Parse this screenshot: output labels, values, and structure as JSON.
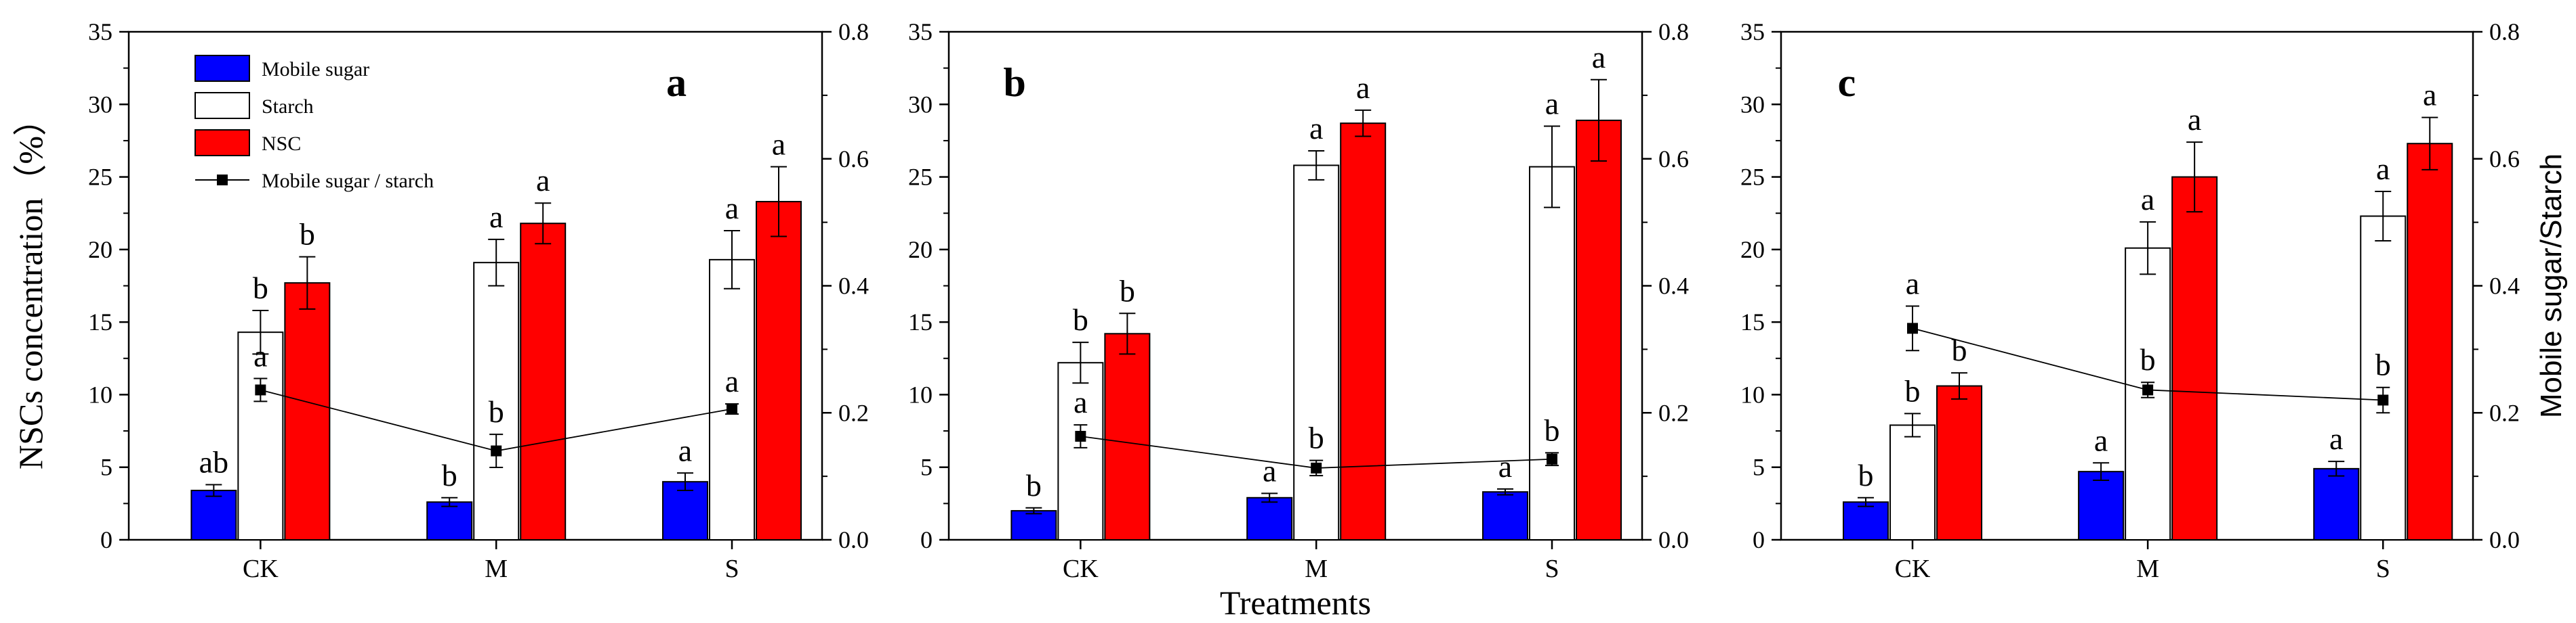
{
  "chart_data": [
    {
      "panel_label": "a",
      "type": "bar",
      "categories": [
        "CK",
        "M",
        "S"
      ],
      "left_axis": {
        "label": "NSCs concentration（%）",
        "range": [
          0,
          35
        ],
        "ticks": [
          "0",
          "5",
          "10",
          "15",
          "20",
          "25",
          "30",
          "35"
        ]
      },
      "right_axis": {
        "label": "",
        "range": [
          0,
          0.8
        ],
        "ticks": [
          "0.0",
          "0.2",
          "0.4",
          "0.6",
          "0.8"
        ]
      },
      "xlabel": "",
      "legend": [
        "Mobile sugar",
        "Starch",
        "NSC",
        "Mobile sugar / starch"
      ],
      "series": [
        {
          "name": "Mobile sugar",
          "color": "#0000ff",
          "values": [
            3.4,
            2.6,
            4.0
          ],
          "errors": [
            0.4,
            0.3,
            0.6
          ],
          "letters": [
            "ab",
            "b",
            "a"
          ]
        },
        {
          "name": "Starch",
          "color": "#ffffff",
          "values": [
            14.3,
            19.1,
            19.3
          ],
          "errors": [
            1.5,
            1.6,
            2.0
          ],
          "letters": [
            "b",
            "a",
            "a"
          ]
        },
        {
          "name": "NSC",
          "color": "#ff0000",
          "values": [
            17.7,
            21.8,
            23.3
          ],
          "errors": [
            1.8,
            1.4,
            2.4
          ],
          "letters": [
            "b",
            "a",
            "a"
          ]
        }
      ],
      "ratio": {
        "name": "Mobile sugar / starch",
        "values": [
          0.236,
          0.14,
          0.206
        ],
        "errors": [
          0.018,
          0.026,
          0.008
        ],
        "letters": [
          "a",
          "b",
          "a"
        ]
      }
    },
    {
      "panel_label": "b",
      "type": "bar",
      "categories": [
        "CK",
        "M",
        "S"
      ],
      "left_axis": {
        "label": "",
        "range": [
          0,
          35
        ],
        "ticks": [
          "0",
          "5",
          "10",
          "15",
          "20",
          "25",
          "30",
          "35"
        ]
      },
      "right_axis": {
        "label": "",
        "range": [
          0,
          0.8
        ],
        "ticks": [
          "0.0",
          "0.2",
          "0.4",
          "0.6",
          "0.8"
        ]
      },
      "xlabel": "Treatments",
      "series": [
        {
          "name": "Mobile sugar",
          "color": "#0000ff",
          "values": [
            2.0,
            2.9,
            3.3
          ],
          "errors": [
            0.2,
            0.3,
            0.2
          ],
          "letters": [
            "b",
            "a",
            "a"
          ]
        },
        {
          "name": "Starch",
          "color": "#ffffff",
          "values": [
            12.2,
            25.8,
            25.7
          ],
          "errors": [
            1.4,
            1.0,
            2.8
          ],
          "letters": [
            "b",
            "a",
            "a"
          ]
        },
        {
          "name": "NSC",
          "color": "#ff0000",
          "values": [
            14.2,
            28.7,
            28.9
          ],
          "errors": [
            1.4,
            0.9,
            2.8
          ],
          "letters": [
            "b",
            "a",
            "a"
          ]
        }
      ],
      "ratio": {
        "name": "Mobile sugar / starch",
        "values": [
          0.163,
          0.113,
          0.127
        ],
        "errors": [
          0.018,
          0.012,
          0.01
        ],
        "letters": [
          "a",
          "b",
          "b"
        ]
      }
    },
    {
      "panel_label": "c",
      "type": "bar",
      "categories": [
        "CK",
        "M",
        "S"
      ],
      "left_axis": {
        "label": "",
        "range": [
          0,
          35
        ],
        "ticks": [
          "0",
          "5",
          "10",
          "15",
          "20",
          "25",
          "30",
          "35"
        ]
      },
      "right_axis": {
        "label": "Mobile sugar/Starch",
        "range": [
          0,
          0.8
        ],
        "ticks": [
          "0.0",
          "0.2",
          "0.4",
          "0.6",
          "0.8"
        ]
      },
      "xlabel": "",
      "series": [
        {
          "name": "Mobile sugar",
          "color": "#0000ff",
          "values": [
            2.6,
            4.7,
            4.9
          ],
          "errors": [
            0.3,
            0.6,
            0.5
          ],
          "letters": [
            "b",
            "a",
            "a"
          ]
        },
        {
          "name": "Starch",
          "color": "#ffffff",
          "values": [
            7.9,
            20.1,
            22.3
          ],
          "errors": [
            0.8,
            1.8,
            1.7
          ],
          "letters": [
            "b",
            "a",
            "a"
          ]
        },
        {
          "name": "NSC",
          "color": "#ff0000",
          "values": [
            10.6,
            25.0,
            27.3
          ],
          "errors": [
            0.9,
            2.4,
            1.8
          ],
          "letters": [
            "b",
            "a",
            "a"
          ]
        }
      ],
      "ratio": {
        "name": "Mobile sugar / starch",
        "values": [
          0.333,
          0.236,
          0.22
        ],
        "errors": [
          0.035,
          0.012,
          0.02
        ],
        "letters": [
          "a",
          "b",
          "b"
        ]
      }
    }
  ]
}
